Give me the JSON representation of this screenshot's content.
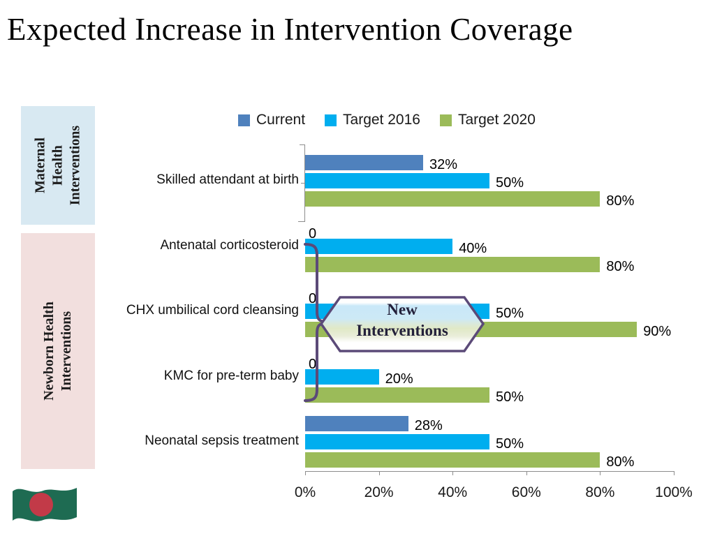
{
  "title": "Expected Increase in Intervention Coverage",
  "side_panels": {
    "maternal": {
      "text": "Maternal\nHealth\nInterventions",
      "bg": "#d8e9f2"
    },
    "newborn": {
      "text": "Newborn Health\nInterventions",
      "bg": "#f2dfde"
    }
  },
  "callout": {
    "text": "New\nInterventions",
    "border_color": "#5b4a78"
  },
  "brace_color": "#5b4a78",
  "flag": {
    "country": "Bangladesh",
    "field_color": "#1e6b52",
    "circle_color": "#c23a48"
  },
  "chart_data": {
    "type": "bar",
    "orientation": "horizontal",
    "title": "",
    "xlabel": "",
    "ylabel": "",
    "xlim": [
      0,
      100
    ],
    "grid": false,
    "legend_position": "top",
    "categories": [
      "Skilled attendant at birth",
      "Antenatal corticosteroid",
      "CHX umbilical cord cleansing",
      "KMC for pre-term baby",
      "Neonatal sepsis treatment"
    ],
    "series": [
      {
        "name": "Current",
        "color": "#4f81bd",
        "values": [
          32,
          0,
          0,
          0,
          28
        ],
        "labels": [
          "32%",
          "0",
          "0",
          "0",
          "28%"
        ]
      },
      {
        "name": "Target 2016",
        "color": "#00aeef",
        "values": [
          50,
          40,
          50,
          20,
          50
        ],
        "labels": [
          "50%",
          "40%",
          "50%",
          "20%",
          "50%"
        ]
      },
      {
        "name": "Target 2020",
        "color": "#9bbb59",
        "values": [
          80,
          80,
          90,
          50,
          80
        ],
        "labels": [
          "80%",
          "80%",
          "90%",
          "50%",
          "80%"
        ]
      }
    ],
    "x_axis": {
      "tick_labels": [
        "0%",
        "20%",
        "40%",
        "60%",
        "80%",
        "100%"
      ],
      "tick_values": [
        0,
        20,
        40,
        60,
        80,
        100
      ]
    }
  }
}
